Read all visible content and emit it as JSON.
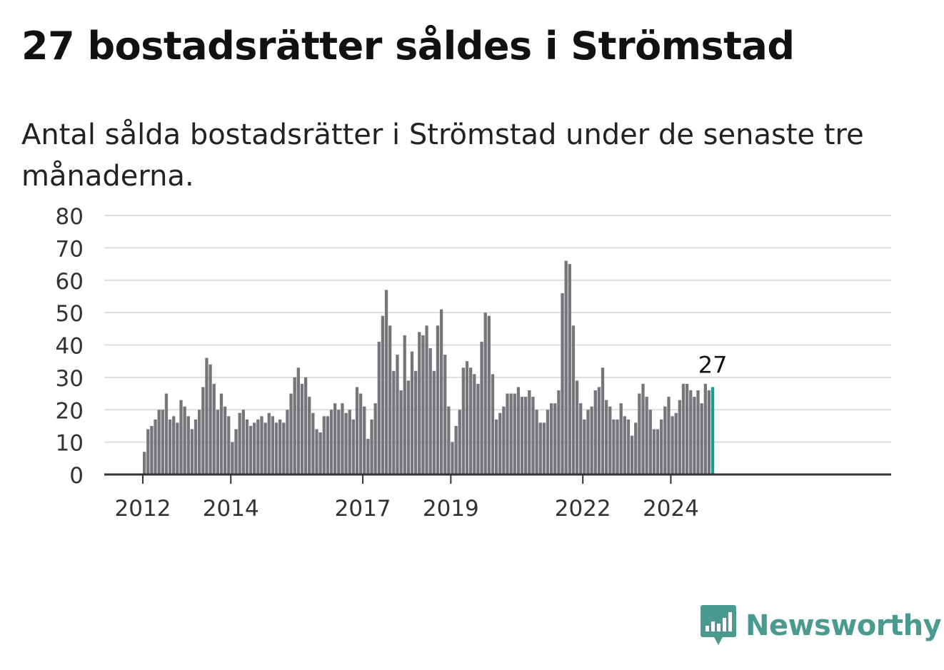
{
  "header": {
    "title": "27 bostadsrätter såldes i Strömstad",
    "subtitle": "Antal sålda bostadsrätter i Strömstad under de senaste tre månaderna."
  },
  "brand": {
    "name": "Newsworthy",
    "color": "#4a9a90"
  },
  "chart_data": {
    "type": "bar",
    "start_year": 2012,
    "yticks": [
      0,
      10,
      20,
      30,
      40,
      50,
      60,
      70,
      80
    ],
    "ylim": [
      0,
      80
    ],
    "xtick_labels": [
      "2012",
      "2014",
      "2017",
      "2019",
      "2022",
      "2024"
    ],
    "grid": true,
    "bar_color": "#76767a",
    "highlight_color": "#1f9a8f",
    "last_value_label": "27",
    "values": [
      7,
      14,
      15,
      17,
      20,
      20,
      25,
      17,
      18,
      16,
      23,
      21,
      18,
      14,
      17,
      20,
      27,
      36,
      34,
      28,
      20,
      25,
      21,
      18,
      10,
      14,
      19,
      20,
      17,
      15,
      16,
      17,
      18,
      16,
      19,
      18,
      16,
      17,
      16,
      20,
      25,
      30,
      33,
      28,
      30,
      24,
      19,
      14,
      13,
      18,
      18,
      20,
      22,
      20,
      22,
      19,
      20,
      17,
      27,
      25,
      21,
      11,
      17,
      22,
      41,
      49,
      57,
      46,
      32,
      37,
      26,
      43,
      29,
      38,
      32,
      44,
      43,
      46,
      39,
      32,
      46,
      51,
      37,
      21,
      10,
      15,
      20,
      33,
      35,
      33,
      31,
      28,
      41,
      50,
      49,
      31,
      17,
      19,
      21,
      25,
      25,
      25,
      27,
      24,
      24,
      26,
      24,
      20,
      16,
      16,
      20,
      22,
      22,
      26,
      56,
      66,
      65,
      46,
      29,
      22,
      17,
      20,
      21,
      26,
      27,
      33,
      23,
      21,
      17,
      17,
      22,
      18,
      17,
      12,
      16,
      25,
      28,
      24,
      20,
      14,
      14,
      17,
      21,
      24,
      18,
      19,
      23,
      28,
      28,
      26,
      24,
      26,
      22,
      28,
      26,
      27
    ]
  }
}
